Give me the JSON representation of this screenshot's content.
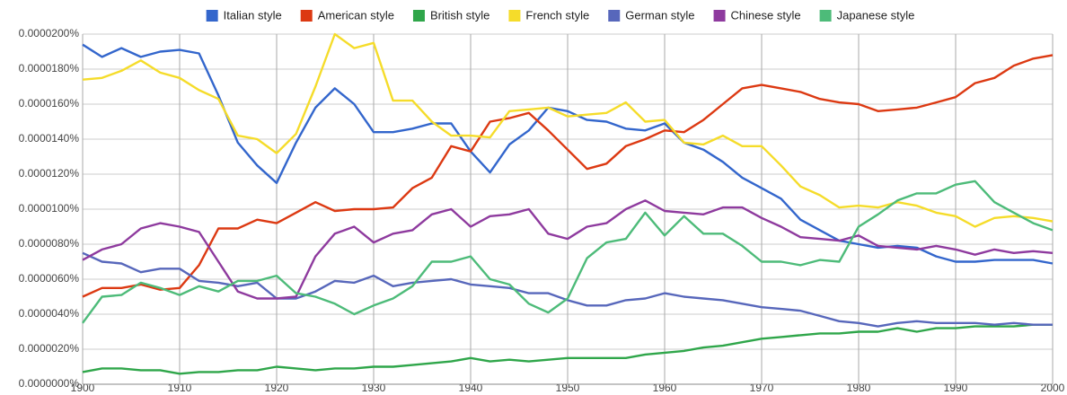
{
  "chart_data": {
    "type": "line",
    "x": [
      1900,
      1902,
      1904,
      1906,
      1908,
      1910,
      1912,
      1914,
      1916,
      1918,
      1920,
      1922,
      1924,
      1926,
      1928,
      1930,
      1932,
      1934,
      1936,
      1938,
      1940,
      1942,
      1944,
      1946,
      1948,
      1950,
      1952,
      1954,
      1956,
      1958,
      1960,
      1962,
      1964,
      1966,
      1968,
      1970,
      1972,
      1974,
      1976,
      1978,
      1980,
      1982,
      1984,
      1986,
      1988,
      1990,
      1992,
      1994,
      1996,
      1998,
      2000
    ],
    "xlim": [
      1900,
      2000
    ],
    "xticks": [
      1900,
      1910,
      1920,
      1930,
      1940,
      1950,
      1960,
      1970,
      1980,
      1990,
      2000
    ],
    "ylim": [
      0,
      2e-05
    ],
    "yticks": [
      {
        "value": 0,
        "label": "0.0000000%"
      },
      {
        "value": 2e-06,
        "label": "0.0000020%"
      },
      {
        "value": 4e-06,
        "label": "0.0000040%"
      },
      {
        "value": 6e-06,
        "label": "0.0000060%"
      },
      {
        "value": 8e-06,
        "label": "0.0000080%"
      },
      {
        "value": 1e-05,
        "label": "0.0000100%"
      },
      {
        "value": 1.2e-05,
        "label": "0.0000120%"
      },
      {
        "value": 1.4e-05,
        "label": "0.0000140%"
      },
      {
        "value": 1.6e-05,
        "label": "0.0000160%"
      },
      {
        "value": 1.8e-05,
        "label": "0.0000180%"
      },
      {
        "value": 2e-05,
        "label": "0.0000200%"
      }
    ],
    "grid": true,
    "legend": "top",
    "series": [
      {
        "name": "Italian style",
        "color": "#3366cc",
        "values": [
          1.94e-05,
          1.87e-05,
          1.92e-05,
          1.87e-05,
          1.9e-05,
          1.91e-05,
          1.89e-05,
          1.65e-05,
          1.38e-05,
          1.25e-05,
          1.15e-05,
          1.38e-05,
          1.58e-05,
          1.69e-05,
          1.6e-05,
          1.44e-05,
          1.44e-05,
          1.46e-05,
          1.49e-05,
          1.49e-05,
          1.33e-05,
          1.21e-05,
          1.37e-05,
          1.45e-05,
          1.58e-05,
          1.56e-05,
          1.51e-05,
          1.5e-05,
          1.46e-05,
          1.45e-05,
          1.49e-05,
          1.38e-05,
          1.34e-05,
          1.27e-05,
          1.18e-05,
          1.12e-05,
          1.06e-05,
          9.4e-06,
          8.8e-06,
          8.2e-06,
          8e-06,
          7.8e-06,
          7.9e-06,
          7.8e-06,
          7.3e-06,
          7e-06,
          7e-06,
          7.1e-06,
          7.1e-06,
          7.1e-06,
          6.9e-06
        ]
      },
      {
        "name": "American style",
        "color": "#dc3912",
        "values": [
          5e-06,
          5.5e-06,
          5.5e-06,
          5.7e-06,
          5.4e-06,
          5.5e-06,
          6.8e-06,
          8.9e-06,
          8.9e-06,
          9.4e-06,
          9.2e-06,
          9.8e-06,
          1.04e-05,
          9.9e-06,
          1e-05,
          1e-05,
          1.01e-05,
          1.12e-05,
          1.18e-05,
          1.36e-05,
          1.33e-05,
          1.5e-05,
          1.52e-05,
          1.55e-05,
          1.45e-05,
          1.34e-05,
          1.23e-05,
          1.26e-05,
          1.36e-05,
          1.4e-05,
          1.45e-05,
          1.44e-05,
          1.51e-05,
          1.6e-05,
          1.69e-05,
          1.71e-05,
          1.69e-05,
          1.67e-05,
          1.63e-05,
          1.61e-05,
          1.6e-05,
          1.56e-05,
          1.57e-05,
          1.58e-05,
          1.61e-05,
          1.64e-05,
          1.72e-05,
          1.75e-05,
          1.82e-05,
          1.86e-05,
          1.88e-05
        ]
      },
      {
        "name": "British style",
        "color": "#2fa64a",
        "values": [
          7e-07,
          9e-07,
          9e-07,
          8e-07,
          8e-07,
          6e-07,
          7e-07,
          7e-07,
          8e-07,
          8e-07,
          1e-06,
          9e-07,
          8e-07,
          9e-07,
          9e-07,
          1e-06,
          1e-06,
          1.1e-06,
          1.2e-06,
          1.3e-06,
          1.5e-06,
          1.3e-06,
          1.4e-06,
          1.3e-06,
          1.4e-06,
          1.5e-06,
          1.5e-06,
          1.5e-06,
          1.5e-06,
          1.7e-06,
          1.8e-06,
          1.9e-06,
          2.1e-06,
          2.2e-06,
          2.4e-06,
          2.6e-06,
          2.7e-06,
          2.8e-06,
          2.9e-06,
          2.9e-06,
          3e-06,
          3e-06,
          3.2e-06,
          3e-06,
          3.2e-06,
          3.2e-06,
          3.3e-06,
          3.3e-06,
          3.3e-06,
          3.4e-06,
          3.4e-06
        ]
      },
      {
        "name": "French style",
        "color": "#f5dc2a",
        "values": [
          1.74e-05,
          1.75e-05,
          1.79e-05,
          1.85e-05,
          1.78e-05,
          1.75e-05,
          1.68e-05,
          1.63e-05,
          1.42e-05,
          1.4e-05,
          1.32e-05,
          1.43e-05,
          1.7e-05,
          2e-05,
          1.92e-05,
          1.95e-05,
          1.62e-05,
          1.62e-05,
          1.5e-05,
          1.42e-05,
          1.42e-05,
          1.41e-05,
          1.56e-05,
          1.57e-05,
          1.58e-05,
          1.53e-05,
          1.54e-05,
          1.55e-05,
          1.61e-05,
          1.5e-05,
          1.51e-05,
          1.38e-05,
          1.37e-05,
          1.42e-05,
          1.36e-05,
          1.36e-05,
          1.25e-05,
          1.13e-05,
          1.08e-05,
          1.01e-05,
          1.02e-05,
          1.01e-05,
          1.04e-05,
          1.02e-05,
          9.8e-06,
          9.6e-06,
          9e-06,
          9.5e-06,
          9.6e-06,
          9.5e-06,
          9.3e-06
        ]
      },
      {
        "name": "German style",
        "color": "#5767bb",
        "values": [
          7.5e-06,
          7e-06,
          6.9e-06,
          6.4e-06,
          6.6e-06,
          6.6e-06,
          5.9e-06,
          5.8e-06,
          5.6e-06,
          5.8e-06,
          4.9e-06,
          4.9e-06,
          5.3e-06,
          5.9e-06,
          5.8e-06,
          6.2e-06,
          5.6e-06,
          5.8e-06,
          5.9e-06,
          6e-06,
          5.7e-06,
          5.6e-06,
          5.5e-06,
          5.2e-06,
          5.2e-06,
          4.8e-06,
          4.5e-06,
          4.5e-06,
          4.8e-06,
          4.9e-06,
          5.2e-06,
          5e-06,
          4.9e-06,
          4.8e-06,
          4.6e-06,
          4.4e-06,
          4.3e-06,
          4.2e-06,
          3.9e-06,
          3.6e-06,
          3.5e-06,
          3.3e-06,
          3.5e-06,
          3.6e-06,
          3.5e-06,
          3.5e-06,
          3.5e-06,
          3.4e-06,
          3.5e-06,
          3.4e-06,
          3.4e-06
        ]
      },
      {
        "name": "Chinese style",
        "color": "#8e3a9e",
        "values": [
          7.1e-06,
          7.7e-06,
          8e-06,
          8.9e-06,
          9.2e-06,
          9e-06,
          8.7e-06,
          7e-06,
          5.3e-06,
          4.9e-06,
          4.9e-06,
          5e-06,
          7.3e-06,
          8.6e-06,
          9e-06,
          8.1e-06,
          8.6e-06,
          8.8e-06,
          9.7e-06,
          1e-05,
          9e-06,
          9.6e-06,
          9.7e-06,
          1e-05,
          8.6e-06,
          8.3e-06,
          9e-06,
          9.2e-06,
          1e-05,
          1.05e-05,
          9.9e-06,
          9.8e-06,
          9.7e-06,
          1.01e-05,
          1.01e-05,
          9.5e-06,
          9e-06,
          8.4e-06,
          8.3e-06,
          8.2e-06,
          8.5e-06,
          7.9e-06,
          7.8e-06,
          7.7e-06,
          7.9e-06,
          7.7e-06,
          7.4e-06,
          7.7e-06,
          7.5e-06,
          7.6e-06,
          7.5e-06
        ]
      },
      {
        "name": "Japanese style",
        "color": "#4dbb79",
        "values": [
          3.5e-06,
          5e-06,
          5.1e-06,
          5.8e-06,
          5.5e-06,
          5.1e-06,
          5.6e-06,
          5.3e-06,
          5.9e-06,
          5.9e-06,
          6.2e-06,
          5.2e-06,
          5e-06,
          4.6e-06,
          4e-06,
          4.5e-06,
          4.9e-06,
          5.6e-06,
          7e-06,
          7e-06,
          7.3e-06,
          6e-06,
          5.7e-06,
          4.6e-06,
          4.1e-06,
          4.9e-06,
          7.2e-06,
          8.1e-06,
          8.3e-06,
          9.8e-06,
          8.5e-06,
          9.6e-06,
          8.6e-06,
          8.6e-06,
          7.9e-06,
          7e-06,
          7e-06,
          6.8e-06,
          7.1e-06,
          7e-06,
          9e-06,
          9.7e-06,
          1.05e-05,
          1.09e-05,
          1.09e-05,
          1.14e-05,
          1.16e-05,
          1.04e-05,
          9.8e-06,
          9.2e-06,
          8.8e-06
        ]
      }
    ]
  }
}
